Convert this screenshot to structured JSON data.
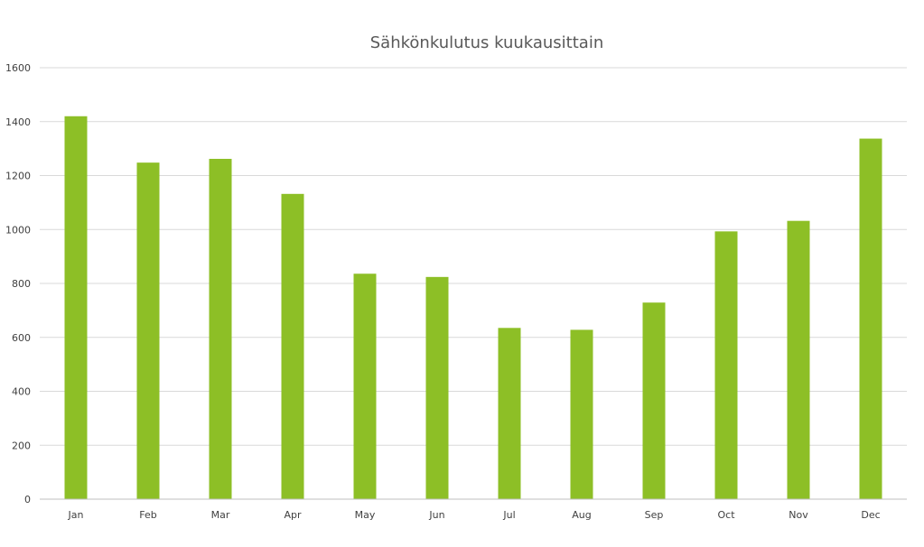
{
  "chart_data": {
    "type": "bar",
    "title": "Sähkönkulutus kuukausittain",
    "categories": [
      "Jan",
      "Feb",
      "Mar",
      "Apr",
      "May",
      "Jun",
      "Jul",
      "Aug",
      "Sep",
      "Oct",
      "Nov",
      "Dec"
    ],
    "values": [
      1420,
      1248,
      1262,
      1132,
      836,
      824,
      635,
      628,
      729,
      993,
      1032,
      1337
    ],
    "ylim": [
      0,
      1600
    ],
    "yticks": [
      0,
      200,
      400,
      600,
      800,
      1000,
      1200,
      1400,
      1600
    ],
    "xlabel": "",
    "ylabel": "",
    "grid": true,
    "legend": "none",
    "colors": {
      "bar": "#8dbf26",
      "grid": "#d9d9d9",
      "axis": "#bfbfbf",
      "title": "#595959",
      "tick": "#404040"
    }
  }
}
